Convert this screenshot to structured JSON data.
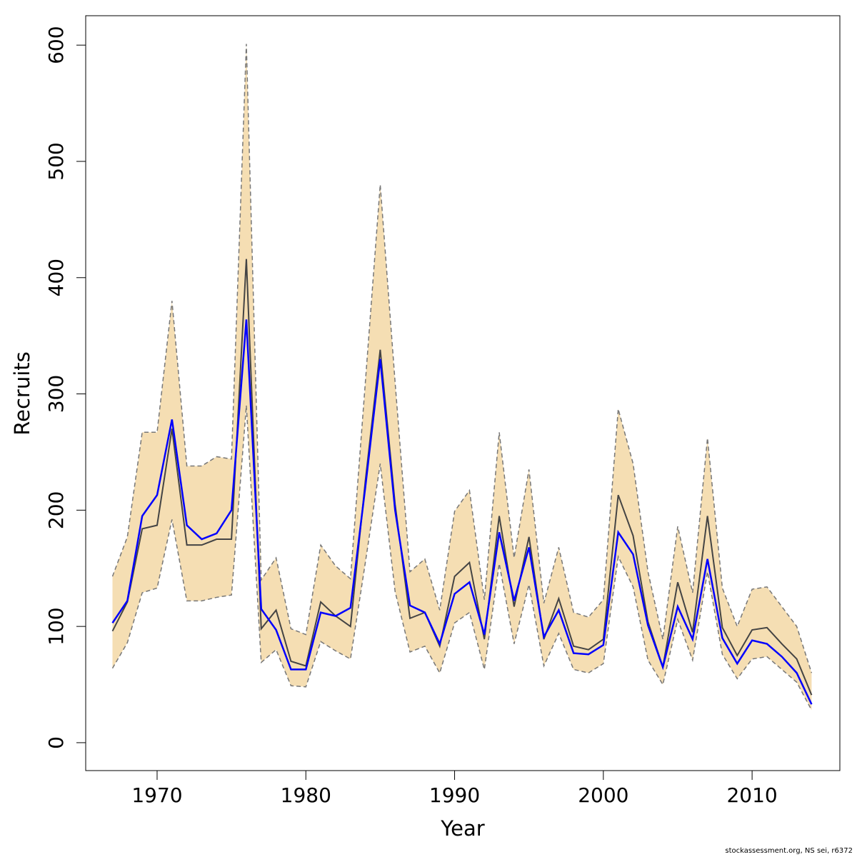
{
  "chart_data": {
    "type": "line",
    "x_label": "Year",
    "y_label": "Recruits",
    "footer": "stockassessment.org, NS sei, r6372",
    "x": [
      1967,
      1968,
      1969,
      1970,
      1971,
      1972,
      1973,
      1974,
      1975,
      1976,
      1977,
      1978,
      1979,
      1980,
      1981,
      1982,
      1983,
      1984,
      1985,
      1986,
      1987,
      1988,
      1989,
      1990,
      1991,
      1992,
      1993,
      1994,
      1995,
      1996,
      1997,
      1998,
      1999,
      2000,
      2001,
      2002,
      2003,
      2004,
      2005,
      2006,
      2007,
      2008,
      2009,
      2010,
      2011,
      2012,
      2013,
      2014
    ],
    "band": {
      "color": "#f5deb3",
      "line_color": "#777777",
      "upper": [
        143,
        177,
        267,
        267,
        380,
        238,
        238,
        246,
        244,
        601,
        140,
        159,
        98,
        93,
        170,
        152,
        141,
        310,
        480,
        310,
        147,
        158,
        114,
        199,
        217,
        123,
        267,
        159,
        235,
        120,
        168,
        112,
        108,
        123,
        287,
        240,
        147,
        89,
        186,
        129,
        262,
        133,
        100,
        132,
        134,
        117,
        100,
        60
      ],
      "lower": [
        64,
        86,
        129,
        133,
        192,
        122,
        122,
        125,
        127,
        290,
        69,
        80,
        49,
        48,
        87,
        79,
        72,
        155,
        240,
        130,
        78,
        83,
        60,
        103,
        112,
        63,
        154,
        85,
        136,
        66,
        94,
        63,
        60,
        68,
        160,
        134,
        71,
        50,
        106,
        71,
        147,
        76,
        55,
        72,
        74,
        63,
        52,
        28
      ]
    },
    "series": [
      {
        "color": "#444444",
        "values": [
          96,
          121,
          184,
          187,
          270,
          170,
          170,
          175,
          175,
          416,
          98,
          114,
          70,
          66,
          121,
          109,
          100,
          225,
          338,
          205,
          107,
          112,
          83,
          143,
          155,
          89,
          195,
          117,
          177,
          89,
          124,
          83,
          80,
          89,
          213,
          178,
          104,
          65,
          138,
          95,
          195,
          99,
          75,
          97,
          99,
          85,
          72,
          41
        ]
      },
      {
        "color": "#0000ff",
        "values": [
          103,
          122,
          195,
          213,
          278,
          187,
          175,
          180,
          200,
          364,
          115,
          97,
          63,
          63,
          112,
          109,
          116,
          220,
          330,
          200,
          118,
          112,
          85,
          128,
          138,
          93,
          181,
          122,
          168,
          91,
          114,
          77,
          76,
          84,
          181,
          162,
          101,
          65,
          117,
          89,
          158,
          90,
          68,
          88,
          85,
          74,
          60,
          33
        ]
      }
    ],
    "xlim": [
      1965.2,
      2015.9
    ],
    "ylim": [
      -24,
      625.3
    ],
    "xticks": [
      1970,
      1980,
      1990,
      2000,
      2010
    ],
    "yticks": [
      0,
      100,
      200,
      300,
      400,
      500,
      600
    ]
  }
}
